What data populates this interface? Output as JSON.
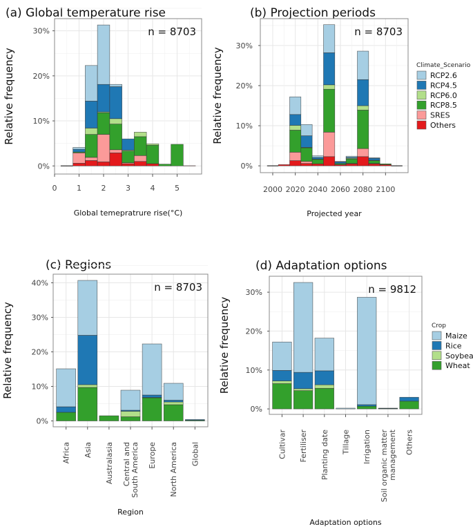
{
  "chart_data": [
    {
      "type": "bar",
      "stacked": true,
      "title": "(a) Global temperature rise",
      "annotation": "n = 8703",
      "xlabel": "Global temepratrure rise(°C)",
      "ylabel": "Relative frequency",
      "xlim": [
        0,
        6
      ],
      "ylim": [
        -1.8,
        32.7
      ],
      "x_ticks": [
        0,
        1,
        2,
        3,
        4,
        5
      ],
      "x_tick_labels": [
        "0",
        "1",
        "2",
        "3",
        "4",
        "5"
      ],
      "y_ticks": [
        0,
        10,
        20,
        30
      ],
      "y_tick_labels": [
        "0%",
        "10%",
        "20%",
        "30%"
      ],
      "grid": true,
      "x": [
        0.5,
        1,
        1.5,
        2,
        2.5,
        3,
        3.5,
        4,
        4.5,
        5,
        5.5
      ],
      "bin_width": 0.5,
      "series": [
        {
          "color": "#a6cee3",
          "values": [
            0,
            0.4,
            7.9,
            13.2,
            0.5,
            0,
            0,
            0,
            0,
            0,
            0
          ]
        },
        {
          "color": "#1f78b4",
          "values": [
            0,
            0.6,
            6.0,
            6.1,
            7.1,
            2.5,
            0,
            0,
            0,
            0,
            0
          ]
        },
        {
          "color": "#b2df8a",
          "values": [
            0,
            0,
            1.4,
            0.2,
            1.2,
            0.2,
            1.0,
            0.3,
            0,
            0,
            0
          ]
        },
        {
          "color": "#33a02c",
          "values": [
            0,
            0.2,
            5.1,
            4.8,
            5.7,
            2.6,
            4.2,
            4.1,
            0.4,
            4.8,
            0
          ]
        },
        {
          "color": "#fb9a99",
          "values": [
            0,
            2.3,
            0.7,
            6.1,
            0.7,
            0.2,
            1.3,
            0,
            0,
            0,
            0
          ]
        },
        {
          "color": "#e31a1c",
          "values": [
            0,
            0.6,
            1.2,
            0.9,
            2.9,
            0.5,
            1.0,
            0.5,
            0,
            0,
            0.05
          ]
        }
      ]
    },
    {
      "type": "bar",
      "stacked": true,
      "title": "(b) Projection periods",
      "annotation": "n = 8703",
      "xlabel": "Projected year",
      "ylabel": "Relative frequency",
      "xlim": [
        1989,
        2120
      ],
      "ylim": [
        -1.7,
        36.7
      ],
      "x_ticks": [
        2000,
        2020,
        2040,
        2060,
        2080,
        2100
      ],
      "x_tick_labels": [
        "2000",
        "2020",
        "2040",
        "2060",
        "2080",
        "2100"
      ],
      "y_ticks": [
        0,
        10,
        20,
        30
      ],
      "y_tick_labels": [
        "0%",
        "10%",
        "20%",
        "30%"
      ],
      "grid": true,
      "legend_title": "Climate_Scenario",
      "legend_position": "right",
      "x": [
        2000,
        2010,
        2020,
        2030,
        2040,
        2050,
        2060,
        2070,
        2080,
        2090,
        2100,
        2110
      ],
      "bin_width": 10,
      "series": [
        {
          "name": "RCP2.6",
          "color": "#a6cee3",
          "values": [
            0,
            0,
            4.4,
            2.8,
            0.4,
            7.0,
            0.1,
            0.3,
            7.1,
            0.1,
            0,
            0
          ]
        },
        {
          "name": "RCP4.5",
          "color": "#1f78b4",
          "values": [
            0,
            0,
            2.7,
            2.9,
            0.4,
            8.0,
            0.4,
            0.2,
            6.5,
            0.5,
            0,
            0
          ]
        },
        {
          "name": "RCP6.0",
          "color": "#b2df8a",
          "values": [
            0,
            0,
            1.2,
            0.1,
            0.1,
            1.1,
            0,
            0.2,
            1.1,
            0.1,
            0,
            0
          ]
        },
        {
          "name": "RCP8.5",
          "color": "#33a02c",
          "values": [
            0,
            0,
            5.5,
            3.4,
            1.1,
            10.7,
            0.3,
            1.1,
            9.6,
            0.7,
            0.2,
            0
          ]
        },
        {
          "name": "SRES",
          "color": "#fb9a99",
          "values": [
            0,
            0,
            2.1,
            0.5,
            0,
            6.1,
            0,
            0.1,
            2.0,
            0.1,
            0,
            0
          ]
        },
        {
          "name": "Others",
          "color": "#e31a1c",
          "values": [
            0,
            0.3,
            1.3,
            0.6,
            0.5,
            2.3,
            0.3,
            0.5,
            2.3,
            0.5,
            0.3,
            0
          ]
        }
      ]
    },
    {
      "type": "bar",
      "stacked": true,
      "title": "(c) Regions",
      "annotation": "n = 8703",
      "xlabel": "Region",
      "ylabel": "Relative frequency",
      "ylim": [
        -1.7,
        42.5
      ],
      "y_ticks": [
        0,
        10,
        20,
        30,
        40
      ],
      "y_tick_labels": [
        "0%",
        "10%",
        "20%",
        "30%",
        "40%"
      ],
      "grid": true,
      "categories": [
        "Africa",
        "Asia",
        "Australasia",
        "Central and|South America",
        "Europe",
        "North America",
        "Global"
      ],
      "series": [
        {
          "color": "#a6cee3",
          "values": [
            11.0,
            15.9,
            0,
            5.8,
            14.8,
            4.9,
            0
          ]
        },
        {
          "color": "#1f78b4",
          "values": [
            1.6,
            14.3,
            0,
            0.3,
            0.7,
            0.5,
            0.2
          ]
        },
        {
          "color": "#b2df8a",
          "values": [
            0,
            0.8,
            0,
            1.6,
            0.1,
            0.8,
            0
          ]
        },
        {
          "color": "#33a02c",
          "values": [
            2.5,
            9.7,
            1.5,
            1.2,
            6.7,
            4.7,
            0.2
          ]
        }
      ]
    },
    {
      "type": "bar",
      "stacked": true,
      "title": "(d) Adaptation options",
      "annotation": "n = 9812",
      "xlabel": "Adaptation options",
      "ylabel": "Relative frequency",
      "ylim": [
        -1.4,
        34.1
      ],
      "y_ticks": [
        0,
        10,
        20,
        30
      ],
      "y_tick_labels": [
        "0%",
        "10%",
        "20%",
        "30%"
      ],
      "grid": true,
      "legend_title": "Crop",
      "legend_position": "right",
      "categories": [
        "Cultivar",
        "Fertiliser",
        "Planting date",
        "Tillage",
        "Irrigation",
        "Soil organic matter|management",
        "Others"
      ],
      "series": [
        {
          "name": "Maize",
          "color": "#a6cee3",
          "values": [
            7.3,
            23.1,
            8.4,
            0.2,
            27.6,
            0,
            0
          ]
        },
        {
          "name": "Rice",
          "color": "#1f78b4",
          "values": [
            2.7,
            4.2,
            3.6,
            0,
            0.4,
            0.1,
            1.0
          ]
        },
        {
          "name": "Soybean",
          "color": "#b2df8a",
          "values": [
            0.7,
            0.5,
            0.9,
            0,
            0,
            0,
            0
          ]
        },
        {
          "name": "Wheat",
          "color": "#33a02c",
          "values": [
            6.5,
            4.7,
            5.3,
            0,
            0.7,
            0.1,
            2.0
          ]
        }
      ]
    }
  ]
}
